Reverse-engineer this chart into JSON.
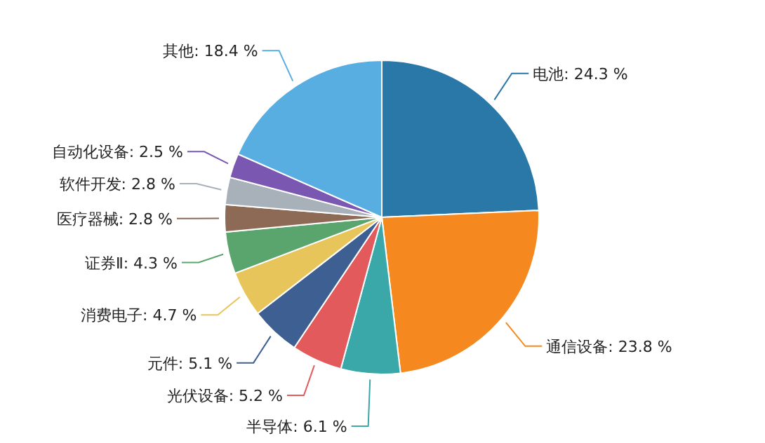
{
  "chart_data": {
    "type": "pie",
    "categories": [
      "电池",
      "通信设备",
      "半导体",
      "光伏设备",
      "元件",
      "消费电子",
      "证券Ⅱ",
      "医疗器械",
      "软件开发",
      "自动化设备",
      "其他"
    ],
    "values": [
      24.3,
      23.8,
      6.1,
      5.2,
      5.1,
      4.7,
      4.3,
      2.8,
      2.8,
      2.5,
      18.4
    ],
    "value_labels": [
      "24.3 %",
      "23.8 %",
      "6.1 %",
      "5.2 %",
      "5.1 %",
      "4.7 %",
      "4.3 %",
      "2.8 %",
      "2.8 %",
      "2.5 %",
      "18.4 %"
    ],
    "colors": [
      "#2a78a8",
      "#f5891f",
      "#3aa8a8",
      "#e25a5c",
      "#3e5f92",
      "#e8c55a",
      "#5aa56e",
      "#8c6a55",
      "#a8b0ba",
      "#7a58b2",
      "#58aee0"
    ]
  }
}
